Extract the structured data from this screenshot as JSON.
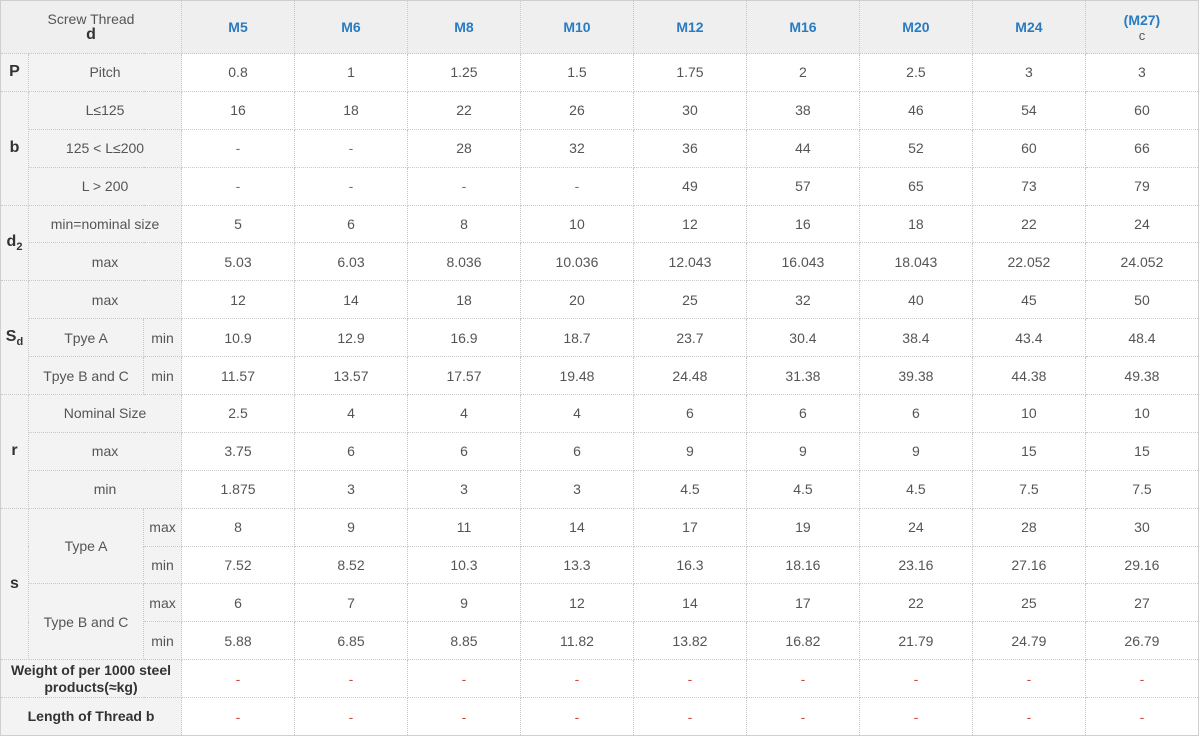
{
  "header": {
    "corner_title": "Screw Thread",
    "corner_symbol": "d",
    "sizes": [
      "M5",
      "M6",
      "M8",
      "M10",
      "M12",
      "M16",
      "M20",
      "M24",
      "(M27)"
    ],
    "last_note": "c"
  },
  "colors": {
    "header_text": "#2a7bc0",
    "dash": "#d04a3a",
    "label_bg": "#f3f3f3"
  },
  "groups": [
    {
      "symbol": "P",
      "subscript": "",
      "rows": [
        {
          "label": "Pitch",
          "values": [
            "0.8",
            "1",
            "1.25",
            "1.5",
            "1.75",
            "2",
            "2.5",
            "3",
            "3"
          ]
        }
      ]
    },
    {
      "symbol": "b",
      "subscript": "",
      "rows": [
        {
          "label": "L≤125",
          "values": [
            "16",
            "18",
            "22",
            "26",
            "30",
            "38",
            "46",
            "54",
            "60"
          ]
        },
        {
          "label": "125 < L≤200",
          "values": [
            "-",
            "-",
            "28",
            "32",
            "36",
            "44",
            "52",
            "60",
            "66"
          ]
        },
        {
          "label": "L > 200",
          "values": [
            "-",
            "-",
            "-",
            "-",
            "49",
            "57",
            "65",
            "73",
            "79"
          ]
        }
      ]
    },
    {
      "symbol": "d",
      "subscript": "2",
      "rows": [
        {
          "label": "min=nominal size",
          "values": [
            "5",
            "6",
            "8",
            "10",
            "12",
            "16",
            "18",
            "22",
            "24"
          ]
        },
        {
          "label": "max",
          "values": [
            "5.03",
            "6.03",
            "8.036",
            "10.036",
            "12.043",
            "16.043",
            "18.043",
            "22.052",
            "24.052"
          ]
        }
      ]
    },
    {
      "symbol": "S",
      "subscript": "d",
      "rows": [
        {
          "label": "max",
          "values": [
            "12",
            "14",
            "18",
            "20",
            "25",
            "32",
            "40",
            "45",
            "50"
          ]
        },
        {
          "label": "Tpye A",
          "qual": "min",
          "values": [
            "10.9",
            "12.9",
            "16.9",
            "18.7",
            "23.7",
            "30.4",
            "38.4",
            "43.4",
            "48.4"
          ]
        },
        {
          "label": "Tpye B and C",
          "qual": "min",
          "values": [
            "11.57",
            "13.57",
            "17.57",
            "19.48",
            "24.48",
            "31.38",
            "39.38",
            "44.38",
            "49.38"
          ]
        }
      ]
    },
    {
      "symbol": "r",
      "subscript": "",
      "rows": [
        {
          "label": "Nominal Size",
          "values": [
            "2.5",
            "4",
            "4",
            "4",
            "6",
            "6",
            "6",
            "10",
            "10"
          ]
        },
        {
          "label": "max",
          "values": [
            "3.75",
            "6",
            "6",
            "6",
            "9",
            "9",
            "9",
            "15",
            "15"
          ]
        },
        {
          "label": "min",
          "values": [
            "1.875",
            "3",
            "3",
            "3",
            "4.5",
            "4.5",
            "4.5",
            "7.5",
            "7.5"
          ]
        }
      ]
    },
    {
      "symbol": "s",
      "subscript": "",
      "rows": [
        {
          "label": "Type A",
          "qual": "max",
          "values": [
            "8",
            "9",
            "11",
            "14",
            "17",
            "19",
            "24",
            "28",
            "30"
          ]
        },
        {
          "label": null,
          "qual": "min",
          "values": [
            "7.52",
            "8.52",
            "10.3",
            "13.3",
            "16.3",
            "18.16",
            "23.16",
            "27.16",
            "29.16"
          ]
        },
        {
          "label": "Type B and C",
          "qual": "max",
          "values": [
            "6",
            "7",
            "9",
            "12",
            "14",
            "17",
            "22",
            "25",
            "27"
          ]
        },
        {
          "label": null,
          "qual": "min",
          "values": [
            "5.88",
            "6.85",
            "8.85",
            "11.82",
            "13.82",
            "16.82",
            "21.79",
            "24.79",
            "26.79"
          ]
        }
      ]
    }
  ],
  "footer_rows": [
    {
      "label": "Weight of per 1000 steel products(≈kg)",
      "values": [
        "-",
        "-",
        "-",
        "-",
        "-",
        "-",
        "-",
        "-",
        "-"
      ]
    },
    {
      "label": "Length of Thread b",
      "values": [
        "-",
        "-",
        "-",
        "-",
        "-",
        "-",
        "-",
        "-",
        "-"
      ]
    }
  ]
}
